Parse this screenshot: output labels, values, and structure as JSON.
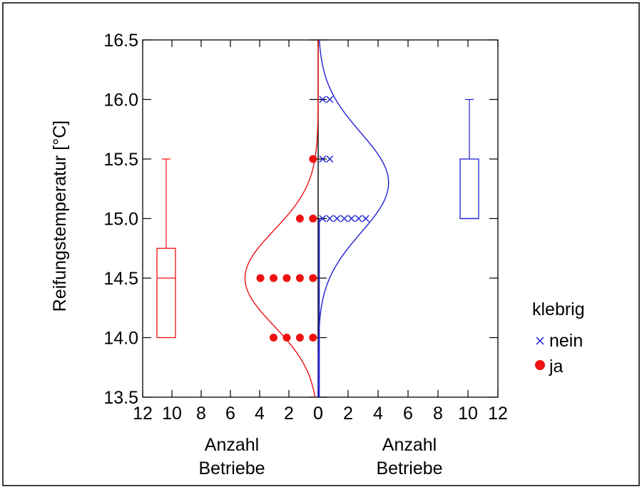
{
  "chart_data": {
    "type": "scatter",
    "title": "",
    "ylabel": "Reifungstemperatur [°C]",
    "ylim": [
      13.5,
      16.5
    ],
    "yticks": [
      "13.5",
      "14.0",
      "14.5",
      "15.0",
      "15.5",
      "16.0",
      "16.5"
    ],
    "left_xlim": [
      12,
      0
    ],
    "right_xlim": [
      0,
      12
    ],
    "left_xticks": [
      "12",
      "10",
      "8",
      "6",
      "4",
      "2",
      "0"
    ],
    "right_xticks": [
      "0",
      "2",
      "4",
      "6",
      "8",
      "10",
      "12"
    ],
    "left_xlabel": [
      "Anzahl",
      "Betriebe"
    ],
    "right_xlabel": [
      "Anzahl",
      "Betriebe"
    ],
    "legend": {
      "title": "klebrig",
      "position": "right",
      "items": [
        {
          "label": "nein",
          "marker": "x",
          "color": "#1f1fd1"
        },
        {
          "label": "ja",
          "marker": "circle",
          "color": "#ee1111"
        }
      ]
    },
    "series": [
      {
        "name": "nein",
        "color": "#1f1fd1",
        "counts": [
          {
            "y": 16.0,
            "n": 2
          },
          {
            "y": 15.5,
            "n": 2
          },
          {
            "y": 15.0,
            "n": 7
          }
        ],
        "curve": {
          "mean": 15.3,
          "sd": 0.42,
          "peak": 4.7
        },
        "box": {
          "min": 15.0,
          "q1": 15.0,
          "median": 15.0,
          "q3": 15.5,
          "max": 16.0
        }
      },
      {
        "name": "ja",
        "color": "#ee1111",
        "counts": [
          {
            "y": 15.5,
            "n": 1
          },
          {
            "y": 15.0,
            "n": 2
          },
          {
            "y": 14.5,
            "n": 5
          },
          {
            "y": 14.0,
            "n": 4
          }
        ],
        "curve": {
          "mean": 14.5,
          "sd": 0.4,
          "peak": 5.0
        },
        "box": {
          "min": 14.0,
          "q1": 14.0,
          "median": 14.5,
          "q3": 14.75,
          "max": 15.5
        }
      }
    ]
  }
}
